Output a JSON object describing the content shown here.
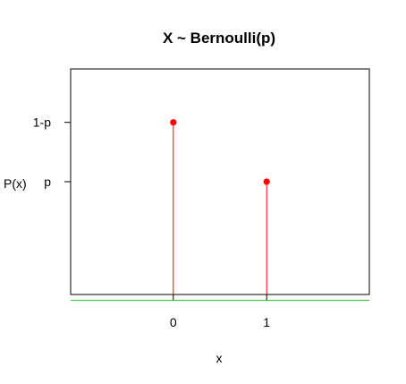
{
  "chart_data": {
    "type": "lollipop",
    "title": "X ~ Bernoulli(p)",
    "xlabel": "x",
    "ylabel": "P(x)",
    "xlim": [
      -1.1,
      2.1
    ],
    "ylim": [
      0.02,
      0.78
    ],
    "x_ticks": [
      0,
      1
    ],
    "x_tick_labels": [
      "0",
      "1"
    ],
    "y_ticks": [
      {
        "value": 0.6,
        "label": "1-p"
      },
      {
        "value": 0.4,
        "label": "p"
      }
    ],
    "points": [
      {
        "x": 0,
        "y": 0.6
      },
      {
        "x": 1,
        "y": 0.4
      }
    ],
    "baseline": 0,
    "colors": {
      "stems": "#ff0000",
      "points": "#ff0000",
      "baseline": "#22c222"
    },
    "grid": false
  }
}
